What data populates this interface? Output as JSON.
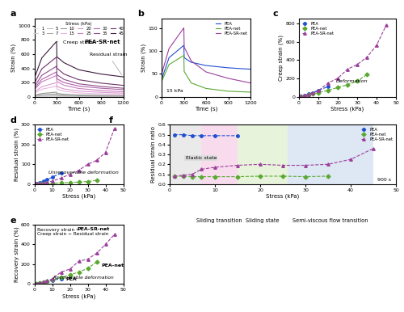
{
  "chart_data": [
    {
      "panel": "a",
      "type": "line",
      "x_label": "Time (s)",
      "y_label": "Strain (%)",
      "xlim": [
        0,
        1200
      ],
      "xticks": [
        0,
        300,
        600,
        900,
        1200
      ],
      "ylim": [
        0,
        1100
      ],
      "yticks": [
        0,
        200,
        400,
        600,
        800,
        1000
      ],
      "legend": "upper center",
      "legend_title": "Stress (kPa)",
      "annotations": [
        {
          "text": "Creep strain"
        },
        {
          "text": "Residual strain"
        },
        {
          "text": "PEA-SR-net"
        }
      ],
      "x": [
        0,
        5,
        100,
        300,
        305,
        400,
        600,
        900,
        1200
      ],
      "series": [
        {
          "name": "1",
          "color": "#e3e3e3",
          "line_style": "solid",
          "values": [
            0,
            1.4,
            2.8,
            4,
            2.9,
            2.2,
            1.6,
            1.2,
            1
          ]
        },
        {
          "name": "3",
          "color": "#d0d0d0",
          "line_style": "solid",
          "values": [
            0,
            4.2,
            8.4,
            12,
            8.6,
            6.6,
            4.8,
            3.7,
            3
          ]
        },
        {
          "name": "5",
          "color": "#bdbdbd",
          "line_style": "solid",
          "values": [
            0,
            8.8,
            17.5,
            25,
            18,
            13,
            9,
            6.6,
            5
          ]
        },
        {
          "name": "7",
          "color": "#a9a9a9",
          "line_style": "solid",
          "values": [
            0,
            14,
            28,
            40,
            29,
            20.8,
            14.4,
            10.6,
            8
          ]
        },
        {
          "name": "10",
          "color": "#969696",
          "line_style": "solid",
          "values": [
            0,
            23,
            45,
            65,
            47,
            35,
            25,
            19,
            15
          ]
        },
        {
          "name": "15",
          "color": "#e7b8e0",
          "line_style": "solid",
          "values": [
            0,
            52,
            105,
            150,
            108,
            78,
            54,
            40,
            30
          ]
        },
        {
          "name": "20",
          "color": "#d99ad0",
          "line_style": "solid",
          "values": [
            0,
            70,
            140,
            200,
            144,
            110,
            80,
            62,
            50
          ]
        },
        {
          "name": "25",
          "color": "#c97dc0",
          "line_style": "solid",
          "values": [
            0,
            105,
            210,
            300,
            216,
            162,
            116,
            88,
            70
          ]
        },
        {
          "name": "30",
          "color": "#b064a8",
          "line_style": "solid",
          "values": [
            0,
            122,
            245,
            350,
            252,
            200,
            150,
            120,
            100
          ]
        },
        {
          "name": "35",
          "color": "#8f4a8a",
          "line_style": "solid",
          "values": [
            0,
            150,
            301,
            430,
            310,
            244,
            182,
            145,
            120
          ]
        },
        {
          "name": "40",
          "color": "#6a3366",
          "line_style": "solid",
          "values": [
            0,
            196,
            392,
            560,
            403,
            320,
            240,
            192,
            160
          ]
        },
        {
          "name": "45",
          "color": "#3a1a3a",
          "line_style": "solid",
          "values": [
            0,
            273,
            546,
            780,
            562,
            480,
            380,
            320,
            280
          ]
        }
      ]
    },
    {
      "panel": "b",
      "type": "line",
      "x_label": "Time (s)",
      "y_label": "Strain (%)",
      "xlim": [
        0,
        1200
      ],
      "xticks": [
        0,
        300,
        600,
        900,
        1200
      ],
      "ylim": [
        0,
        170
      ],
      "yticks": [
        0,
        50,
        100,
        150
      ],
      "legend": "upper right",
      "annotations": [
        {
          "text": "15 kPa"
        }
      ],
      "x": [
        0,
        5,
        100,
        300,
        305,
        400,
        600,
        900,
        1200
      ],
      "series": [
        {
          "name": "PEA",
          "color": "#1f4fd1",
          "line_style": "solid",
          "values": [
            0,
            40,
            85,
            112,
            85,
            75,
            68,
            63,
            60
          ]
        },
        {
          "name": "PEA-net",
          "color": "#5aa832",
          "line_style": "solid",
          "values": [
            0,
            35,
            70,
            90,
            55,
            30,
            18,
            12,
            10
          ]
        },
        {
          "name": "PEA-SR-net",
          "color": "#9b3f9b",
          "line_style": "solid",
          "values": [
            0,
            52,
            105,
            150,
            108,
            78,
            54,
            40,
            30
          ]
        }
      ]
    },
    {
      "panel": "c",
      "type": "line",
      "x_label": "Stress (kPa)",
      "y_label": "Creep strain (%)",
      "xlim": [
        0,
        50
      ],
      "xticks": [
        0,
        10,
        20,
        30,
        40,
        50
      ],
      "ylim": [
        0,
        850
      ],
      "yticks": [
        0,
        200,
        400,
        600,
        800
      ],
      "legend": "upper left",
      "annotations": [
        {
          "text": "Deformation"
        }
      ],
      "series": [
        {
          "name": "PEA",
          "color": "#1f4fd1",
          "marker": "circle",
          "line_style": "dashed",
          "x": [
            1,
            3,
            5,
            7,
            10,
            15
          ],
          "values": [
            5,
            15,
            30,
            45,
            70,
            110
          ]
        },
        {
          "name": "PEA-net",
          "color": "#5aa832",
          "marker": "diamond",
          "line_style": "dashed",
          "x": [
            1,
            3,
            5,
            7,
            10,
            15,
            20,
            25,
            30,
            35
          ],
          "values": [
            3,
            10,
            20,
            30,
            45,
            70,
            100,
            130,
            170,
            240
          ]
        },
        {
          "name": "PEA-SR-net",
          "color": "#9b3f9b",
          "marker": "triangle",
          "line_style": "dashed",
          "x": [
            1,
            3,
            5,
            7,
            10,
            15,
            20,
            25,
            30,
            35,
            40,
            45
          ],
          "values": [
            4,
            12,
            25,
            40,
            65,
            150,
            200,
            300,
            350,
            430,
            560,
            780
          ]
        }
      ]
    },
    {
      "panel": "d",
      "type": "line",
      "x_label": "Stress (kPa)",
      "y_label": "Residual strain (%)",
      "xlim": [
        0,
        50
      ],
      "xticks": [
        0,
        10,
        20,
        30,
        40,
        50
      ],
      "ylim": [
        0,
        300
      ],
      "yticks": [
        0,
        100,
        200,
        300
      ],
      "legend": "upper left",
      "annotations": [
        {
          "text": "Unrecoverable deformation"
        }
      ],
      "series": [
        {
          "name": "PEA",
          "color": "#1f4fd1",
          "marker": "circle",
          "line_style": "dashed",
          "x": [
            1,
            3,
            5,
            7,
            10,
            15
          ],
          "values": [
            2,
            7,
            15,
            22,
            35,
            55
          ]
        },
        {
          "name": "PEA-net",
          "color": "#5aa832",
          "marker": "diamond",
          "line_style": "dashed",
          "x": [
            1,
            3,
            5,
            7,
            10,
            15,
            20,
            25,
            30,
            35
          ],
          "values": [
            0.3,
            1,
            2,
            3,
            4,
            6,
            8,
            10,
            13,
            19
          ]
        },
        {
          "name": "PEA-SR-net",
          "color": "#9b3f9b",
          "marker": "triangle",
          "line_style": "dashed",
          "x": [
            1,
            3,
            5,
            7,
            10,
            15,
            20,
            25,
            30,
            35,
            40,
            45
          ],
          "values": [
            1,
            3,
            5,
            8,
            15,
            30,
            50,
            70,
            100,
            120,
            160,
            280
          ]
        }
      ]
    },
    {
      "panel": "e",
      "type": "line",
      "x_label": "Stress (kPa)",
      "y_label": "Recovery strain (%)",
      "xlim": [
        0,
        50
      ],
      "xticks": [
        0,
        10,
        20,
        30,
        40,
        50
      ],
      "ylim": [
        0,
        600
      ],
      "yticks": [
        0,
        200,
        400,
        600
      ],
      "annotations": [
        {
          "text": "Recovery strain =\nCreep strain − Residual strain"
        },
        {
          "text": "Recoverable deformation"
        }
      ],
      "series": [
        {
          "name": "PEA",
          "color": "#1f4fd1",
          "marker": "circle",
          "line_style": "dashed",
          "x": [
            1,
            3,
            5,
            7,
            10,
            15
          ],
          "values": [
            3,
            8,
            15,
            23,
            35,
            55
          ]
        },
        {
          "name": "PEA-net",
          "color": "#5aa832",
          "marker": "diamond",
          "line_style": "dashed",
          "x": [
            1,
            3,
            5,
            7,
            10,
            15,
            20,
            25,
            30,
            35
          ],
          "values": [
            2.7,
            9,
            18,
            27,
            41,
            64,
            92,
            120,
            157,
            221
          ]
        },
        {
          "name": "PEA-SR-net",
          "color": "#9b3f9b",
          "marker": "triangle",
          "line_style": "dashed",
          "x": [
            1,
            3,
            5,
            7,
            10,
            15,
            20,
            25,
            30,
            35,
            40,
            45
          ],
          "values": [
            3,
            9,
            20,
            32,
            50,
            120,
            150,
            230,
            250,
            310,
            400,
            500
          ]
        }
      ]
    },
    {
      "panel": "f",
      "type": "line",
      "x_label": "Stress (kPa)",
      "y_label": "Residual strain ratio",
      "xlim": [
        0,
        50
      ],
      "xticks": [
        0,
        10,
        20,
        30,
        40,
        50
      ],
      "ylim": [
        0,
        0.6
      ],
      "yticks": [
        {
          "value": 0,
          "label": "0.0"
        },
        {
          "value": 0.1,
          "label": "0.1"
        },
        {
          "value": 0.2,
          "label": "0.2"
        },
        {
          "value": 0.3,
          "label": "0.3"
        },
        {
          "value": 0.4,
          "label": "0.4"
        },
        {
          "value": 0.5,
          "label": "0.5"
        },
        {
          "value": 0.6,
          "label": "0.6"
        }
      ],
      "legend": "upper right",
      "annotations": [
        {
          "text": "900 s"
        }
      ],
      "regions": [
        {
          "label": "Elastic state",
          "range": [
            0,
            7
          ],
          "color": "#dcdcdc"
        },
        {
          "label": "Sliding transition",
          "range": [
            7,
            15
          ],
          "color": "#f4c6e4"
        },
        {
          "label": "Sliding state",
          "range": [
            15,
            26
          ],
          "color": "#d8ebc4"
        },
        {
          "label": "Semi-viscous flow transition",
          "range": [
            26,
            45
          ],
          "color": "#c9d8ee"
        }
      ],
      "series": [
        {
          "name": "PEA",
          "color": "#1f4fd1",
          "marker": "circle",
          "line_style": "dashed",
          "x": [
            1,
            3,
            5,
            7,
            10,
            15
          ],
          "values": [
            0.5,
            0.5,
            0.49,
            0.49,
            0.49,
            0.49
          ]
        },
        {
          "name": "PEA-net",
          "color": "#5aa832",
          "marker": "diamond",
          "line_style": "dashed",
          "x": [
            1,
            3,
            5,
            7,
            10,
            15,
            20,
            25,
            30,
            35
          ],
          "values": [
            0.08,
            0.08,
            0.075,
            0.075,
            0.075,
            0.075,
            0.08,
            0.08,
            0.075,
            0.08
          ]
        },
        {
          "name": "PEA-SR-net",
          "color": "#9b3f9b",
          "marker": "triangle",
          "line_style": "dashed",
          "x": [
            1,
            3,
            5,
            7,
            10,
            15,
            20,
            25,
            30,
            35,
            40,
            45
          ],
          "values": [
            0.08,
            0.09,
            0.1,
            0.15,
            0.17,
            0.19,
            0.2,
            0.19,
            0.19,
            0.2,
            0.25,
            0.36
          ]
        }
      ]
    }
  ]
}
